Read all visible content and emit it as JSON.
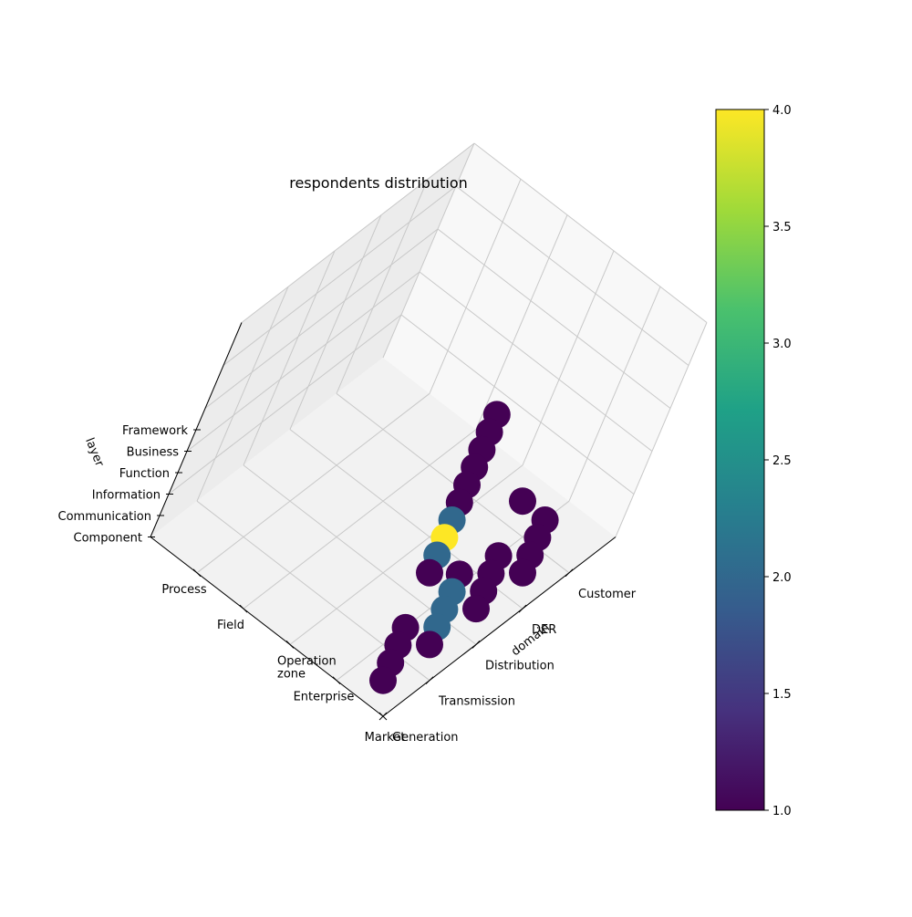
{
  "chart_data": {
    "type": "scatter",
    "projection": "3d",
    "title": "respondents distribution",
    "xlabel": "domain",
    "ylabel": "",
    "zlabel": "layer",
    "zone_axis_tick_labels": [
      "Process",
      "Field",
      "Operation\nzone",
      "Enterprise",
      "Market"
    ],
    "domain_axis_tick_labels": [
      "Customer",
      "DER",
      "Distribution",
      "Transmission",
      "Generation"
    ],
    "layer_axis_tick_labels": [
      "Component",
      "Communication",
      "Information",
      "Function",
      "Business",
      "Framework"
    ],
    "grid": true,
    "colormap": "viridis",
    "colorbar": {
      "min": 1.0,
      "max": 4.0,
      "tick_labels": [
        "1.0",
        "1.5",
        "2.0",
        "2.5",
        "3.0",
        "3.5",
        "4.0"
      ],
      "stops": [
        "#440154",
        "#46327e",
        "#365c8d",
        "#277f8e",
        "#1fa187",
        "#4ac16d",
        "#a0da39",
        "#fde725"
      ]
    },
    "points": [
      {
        "zone": 0,
        "domain": 3,
        "layer": 0,
        "count": 1
      },
      {
        "zone": 0,
        "domain": 3,
        "layer": 1,
        "count": 1
      },
      {
        "zone": 0,
        "domain": 3,
        "layer": 2,
        "count": 1
      },
      {
        "zone": 0,
        "domain": 3,
        "layer": 3,
        "count": 1
      },
      {
        "zone": 1,
        "domain": 4,
        "layer": 0,
        "count": 1
      },
      {
        "zone": 1,
        "domain": 2,
        "layer": 0,
        "count": 1
      },
      {
        "zone": 1,
        "domain": 2,
        "layer": 1,
        "count": 2
      },
      {
        "zone": 1,
        "domain": 2,
        "layer": 2,
        "count": 4
      },
      {
        "zone": 1,
        "domain": 2,
        "layer": 3,
        "count": 2
      },
      {
        "zone": 1,
        "domain": 2,
        "layer": 4,
        "count": 1
      },
      {
        "zone": 1,
        "domain": 2,
        "layer": 5,
        "count": 1
      },
      {
        "zone": 1,
        "domain": 2,
        "layer": 6,
        "count": 1
      },
      {
        "zone": 1,
        "domain": 2,
        "layer": 7,
        "count": 1
      },
      {
        "zone": 1,
        "domain": 2,
        "layer": 8,
        "count": 1
      },
      {
        "zone": 1,
        "domain": 2,
        "layer": 9,
        "count": 1
      },
      {
        "zone": 0,
        "domain": 2,
        "layer": 0,
        "count": 1
      },
      {
        "zone": 0,
        "domain": 2,
        "layer": 1,
        "count": 1
      },
      {
        "zone": 0,
        "domain": 2,
        "layer": 2,
        "count": 1
      },
      {
        "zone": 0,
        "domain": 2,
        "layer": 3,
        "count": 1
      },
      {
        "zone": 0,
        "domain": 1,
        "layer": 0,
        "count": 1
      },
      {
        "zone": 0,
        "domain": 1,
        "layer": 1,
        "count": 2
      },
      {
        "zone": 0,
        "domain": 1,
        "layer": 2,
        "count": 2
      },
      {
        "zone": 0,
        "domain": 1,
        "layer": 3,
        "count": 2
      },
      {
        "zone": 0,
        "domain": 1,
        "layer": 4,
        "count": 1
      },
      {
        "zone": 0,
        "domain": 0,
        "layer": 0,
        "count": 1
      },
      {
        "zone": 0,
        "domain": 0,
        "layer": 1,
        "count": 1
      },
      {
        "zone": 0,
        "domain": 0,
        "layer": 2,
        "count": 1
      },
      {
        "zone": 0,
        "domain": 0,
        "layer": 3,
        "count": 1
      }
    ]
  }
}
